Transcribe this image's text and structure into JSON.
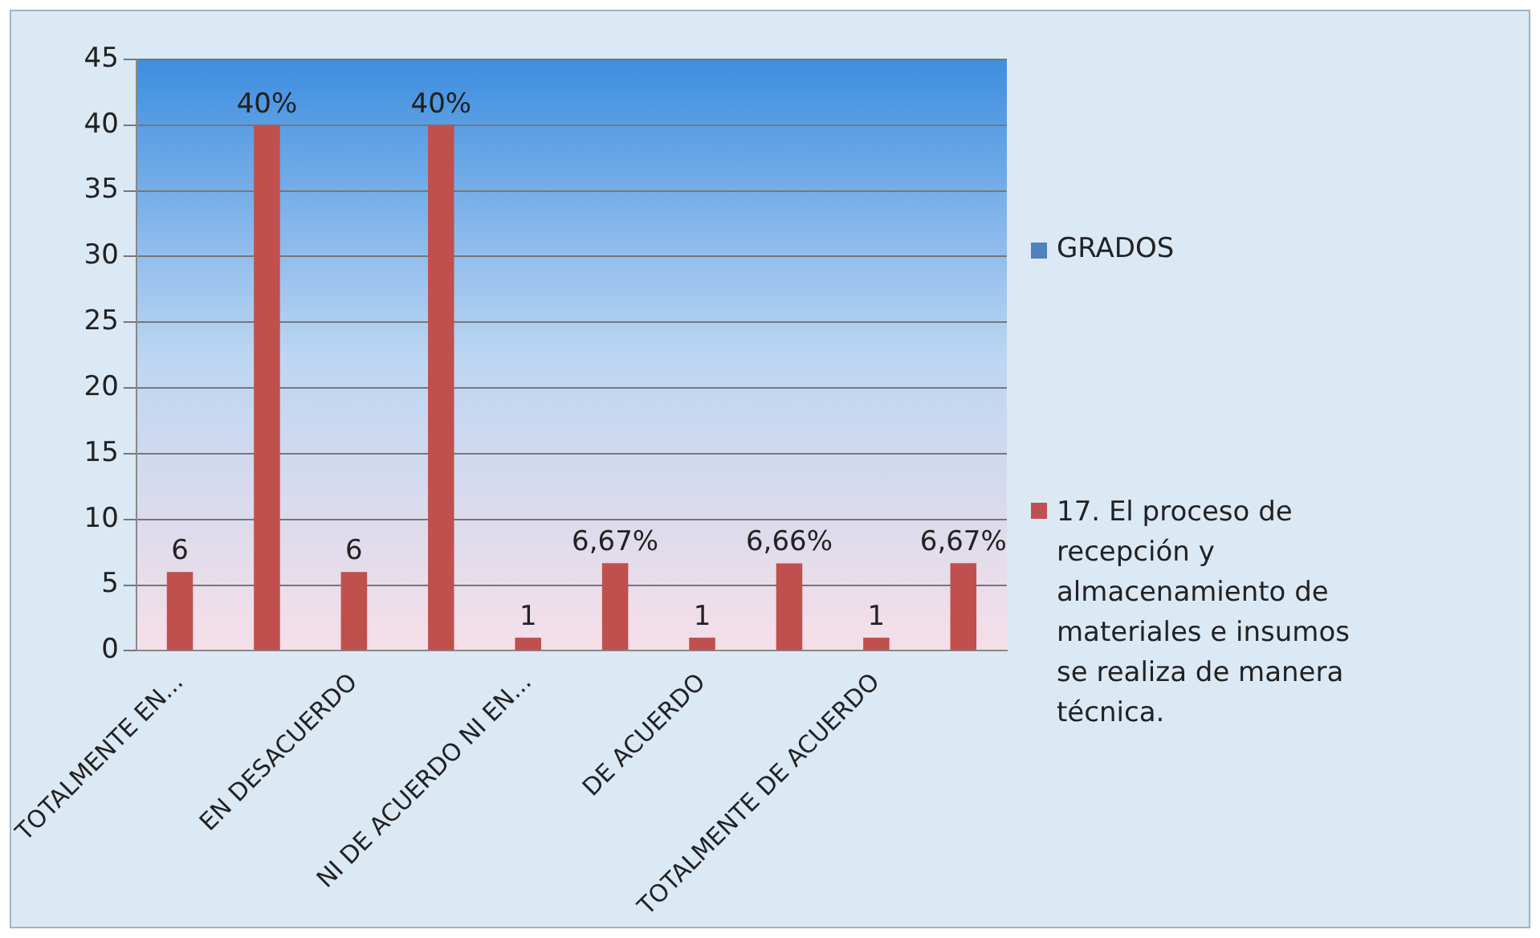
{
  "chart_data": {
    "type": "bar",
    "categories": [
      "TOTALMENTE EN...",
      null,
      "EN DESACUERDO",
      null,
      "NI DE ACUERDO NI EN...",
      null,
      "DE ACUERDO",
      null,
      "TOTALMENTE DE ACUERDO",
      null
    ],
    "series": [
      {
        "name": "GRADOS",
        "color": "#4f81bd",
        "values": [
          null,
          null,
          null,
          null,
          null,
          null,
          null,
          null,
          null,
          null
        ]
      },
      {
        "name": "17. El proceso de recepción y almacenamiento de materiales e insumos se realiza de manera técnica.",
        "color": "#c0504d",
        "values": [
          6,
          40,
          6,
          40,
          1,
          6.67,
          1,
          6.66,
          1,
          6.67
        ],
        "value_labels": [
          "6",
          "40%",
          "6",
          "40%",
          "1",
          "6,67%",
          "1",
          "6,66%",
          "1",
          "6,67%"
        ]
      }
    ],
    "ylim": [
      0,
      45
    ],
    "yticks": [
      0,
      5,
      10,
      15,
      20,
      25,
      30,
      35,
      40,
      45
    ],
    "grid": "y",
    "legend": "right"
  }
}
